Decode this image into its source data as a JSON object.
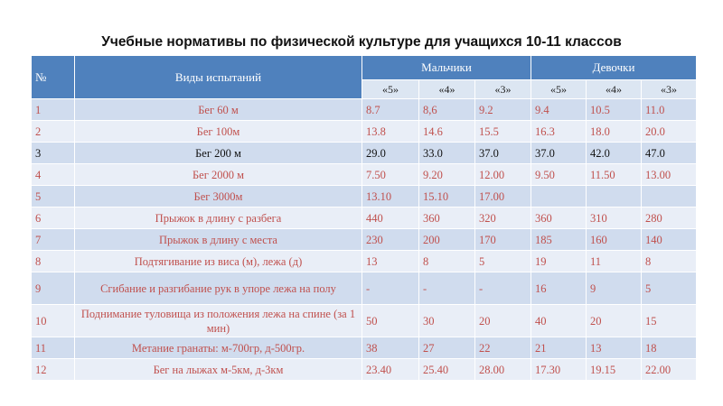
{
  "title": "Учебные нормативы по физической культуре для учащихся 10-11 классов",
  "table": {
    "head": {
      "num": "№",
      "test": "Виды испытаний",
      "boys": "Мальчики",
      "girls": "Девочки",
      "grades": [
        "«5»",
        "«4»",
        "«3»",
        "«5»",
        "«4»",
        "«3»"
      ]
    },
    "rows": [
      {
        "num": "1",
        "test": "Бег 60 м",
        "vals": [
          "8.7",
          "8,6",
          "9.2",
          "9.4",
          "10.5",
          "11.0"
        ],
        "color": "red"
      },
      {
        "num": "2",
        "test": "Бег 100м",
        "vals": [
          "13.8",
          "14.6",
          "15.5",
          "16.3",
          "18.0",
          "20.0"
        ],
        "color": "red"
      },
      {
        "num": "3",
        "test": "Бег 200 м",
        "vals": [
          "29.0",
          "33.0",
          "37.0",
          "37.0",
          "42.0",
          "47.0"
        ],
        "color": "black"
      },
      {
        "num": "4",
        "test": "Бег 2000 м",
        "vals": [
          "7.50",
          "9.20",
          "12.00",
          "9.50",
          "11.50",
          "13.00"
        ],
        "color": "red"
      },
      {
        "num": "5",
        "test": "Бег 3000м",
        "vals": [
          "13.10",
          "15.10",
          "17.00",
          "",
          "",
          ""
        ],
        "color": "red"
      },
      {
        "num": "6",
        "test": "Прыжок в длину с разбега",
        "vals": [
          "440",
          "360",
          "320",
          "360",
          "310",
          "280"
        ],
        "color": "red"
      },
      {
        "num": "7",
        "test": "Прыжок в длину с места",
        "vals": [
          "230",
          "200",
          "170",
          "185",
          "160",
          "140"
        ],
        "color": "red"
      },
      {
        "num": "8",
        "test": "Подтягивание из виса (м), лежа (д)",
        "vals": [
          "13",
          "8",
          "5",
          "19",
          "11",
          "8"
        ],
        "color": "red"
      },
      {
        "num": "9",
        "test": "Сгибание и разгибание рук в упоре лежа на полу",
        "vals": [
          "-",
          "-",
          "-",
          "16",
          "9",
          "5"
        ],
        "color": "red"
      },
      {
        "num": "10",
        "test": "Поднимание туловища из положения лежа на спине (за 1 мин)",
        "vals": [
          "50",
          "30",
          "20",
          "40",
          "20",
          "15"
        ],
        "color": "red"
      },
      {
        "num": "11",
        "test": "Метание гранаты: м-700гр, д-500гр.",
        "vals": [
          "38",
          "27",
          "22",
          "21",
          "13",
          "18"
        ],
        "color": "red"
      },
      {
        "num": "12",
        "test": "Бег на лыжах м-5км, д-3км",
        "vals": [
          "23.40",
          "25.40",
          "28.00",
          "17.30",
          "19.15",
          "22.00"
        ],
        "color": "red"
      }
    ]
  },
  "colors": {
    "header": "#4f81bd",
    "subheader": "#dce6f2",
    "row_dark": "#d0dcee",
    "row_light": "#e9eef7",
    "text_red": "#c0504d",
    "text_black": "#111111"
  }
}
